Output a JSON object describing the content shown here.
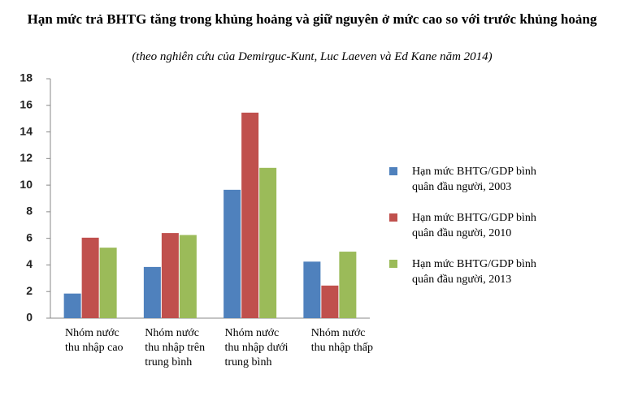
{
  "chart_data": {
    "type": "bar",
    "title": "Hạn mức trả BHTG tăng trong khủng hoảng và giữ nguyên ở mức cao so với trước khủng hoảng",
    "subtitle": "(theo nghiên cứu của Demirguc-Kunt, Luc Laeven và Ed Kane năm 2014)",
    "categories": [
      "Nhóm nước thu nhập cao",
      "Nhóm nước thu nhập trên trung bình",
      "Nhóm nước thu nhập dưới trung bình",
      "Nhóm nước thu nhập thấp"
    ],
    "series": [
      {
        "name": "Hạn mức BHTG/GDP bình quân đầu người, 2003",
        "color": "#4f81bd",
        "values": [
          1.85,
          3.85,
          9.65,
          4.25
        ]
      },
      {
        "name": "Hạn mức BHTG/GDP bình quân đầu người, 2010",
        "color": "#c0504d",
        "values": [
          6.05,
          6.4,
          15.45,
          2.45
        ]
      },
      {
        "name": "Hạn mức BHTG/GDP bình quân đầu người, 2013",
        "color": "#9bbb59",
        "values": [
          5.3,
          6.25,
          11.3,
          5.0
        ]
      }
    ],
    "ylim": [
      0,
      18
    ],
    "yticks": [
      0,
      2,
      4,
      6,
      8,
      10,
      12,
      14,
      16,
      18
    ],
    "grid": false,
    "legend": "right"
  }
}
